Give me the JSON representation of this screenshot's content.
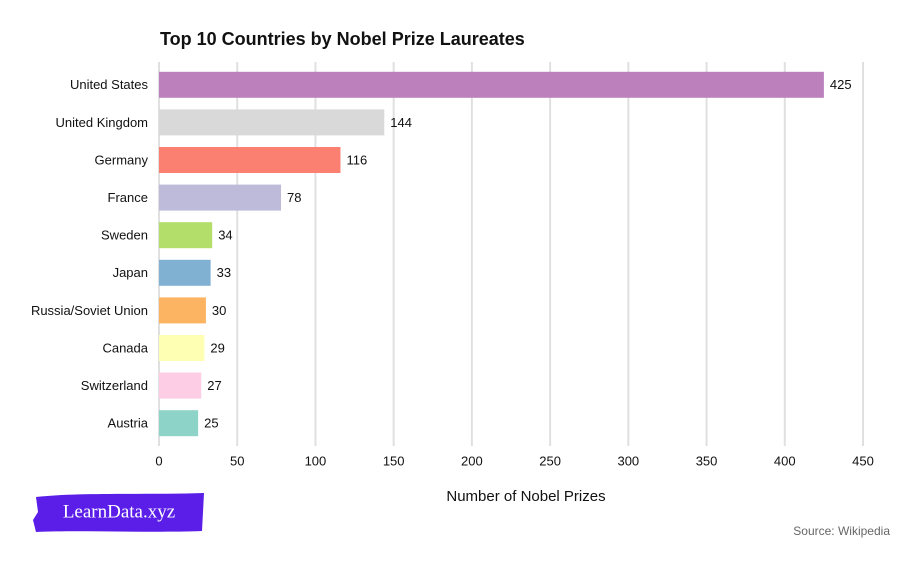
{
  "chart_data": {
    "type": "bar",
    "orientation": "horizontal",
    "title": "Top 10 Countries by Nobel Prize Laureates",
    "categories": [
      "United States",
      "United Kingdom",
      "Germany",
      "France",
      "Sweden",
      "Japan",
      "Russia/Soviet Union",
      "Canada",
      "Switzerland",
      "Austria"
    ],
    "values": [
      425,
      144,
      116,
      78,
      34,
      33,
      30,
      29,
      27,
      25
    ],
    "colors": [
      "#bc80bd",
      "#d9d9d9",
      "#fb8072",
      "#bebada",
      "#b3de69",
      "#80b1d3",
      "#fdb462",
      "#ffffb3",
      "#fccde5",
      "#8dd3c7"
    ],
    "xlabel": "Number of Nobel Prizes",
    "xlim": [
      0,
      450
    ],
    "xticks": [
      0,
      50,
      100,
      150,
      200,
      250,
      300,
      350,
      400,
      450
    ],
    "grid": true,
    "source": "Source: Wikipedia",
    "watermark": "LearnData.xyz"
  }
}
